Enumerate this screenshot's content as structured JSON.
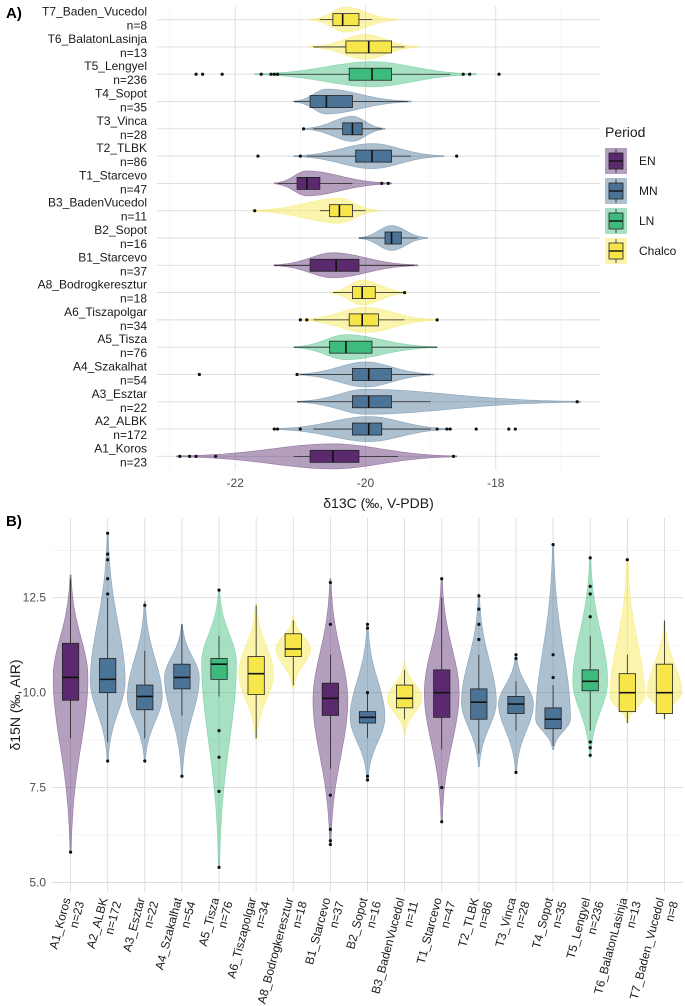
{
  "figure": {
    "panel_a_tag": "A)",
    "panel_b_tag": "B)",
    "legend": {
      "title": "Period",
      "items": [
        {
          "label": "EN",
          "color": "#5b2a6e"
        },
        {
          "label": "MN",
          "color": "#4a7396"
        },
        {
          "label": "LN",
          "color": "#3dbb7d"
        },
        {
          "label": "Chalco",
          "color": "#f7e64a"
        }
      ]
    }
  },
  "chart_data": [
    {
      "type": "violin-box",
      "orientation": "horizontal",
      "title": "",
      "xlabel": "δ13C (‰, V-PDB)",
      "ylabel": "",
      "xlim": [
        -23.2,
        -16.4
      ],
      "xticks": [
        -22,
        -20,
        -18
      ],
      "xtick_labels": [
        "-22",
        "-20",
        "-18"
      ],
      "grid": true,
      "legend_position": "right",
      "groups": [
        {
          "name": "T7_Baden_Vucedol",
          "n": "n=8",
          "period": "Chalco",
          "min": -20.7,
          "q1": -20.5,
          "median": -20.35,
          "q3": -20.1,
          "max": -19.9,
          "vmin": -20.85,
          "vmax": -19.5,
          "peak": -20.3,
          "outliers": []
        },
        {
          "name": "T6_BalatonLasinja",
          "n": "n=13",
          "period": "Chalco",
          "min": -20.8,
          "q1": -20.3,
          "median": -19.95,
          "q3": -19.6,
          "max": -19.4,
          "vmin": -20.85,
          "vmax": -19.2,
          "peak": -20.0,
          "outliers": []
        },
        {
          "name": "T5_Lengyel",
          "n": "n=236",
          "period": "LN",
          "min": -21.4,
          "q1": -20.25,
          "median": -19.9,
          "q3": -19.6,
          "max": -18.7,
          "vmin": -21.7,
          "vmax": -18.3,
          "peak": -19.9,
          "outliers": [
            -22.6,
            -22.5,
            -22.2,
            -21.6,
            -21.45,
            -21.4,
            -21.35,
            -18.5,
            -18.4,
            -17.95
          ]
        },
        {
          "name": "T4_Sopot",
          "n": "n=35",
          "period": "MN",
          "min": -21.1,
          "q1": -20.85,
          "median": -20.6,
          "q3": -20.2,
          "max": -19.35,
          "vmin": -21.1,
          "vmax": -19.3,
          "peak": -20.6,
          "outliers": []
        },
        {
          "name": "T3_Vinca",
          "n": "n=28",
          "period": "MN",
          "min": -20.8,
          "q1": -20.35,
          "median": -20.2,
          "q3": -20.05,
          "max": -19.75,
          "vmin": -20.95,
          "vmax": -19.7,
          "peak": -20.2,
          "outliers": [
            -20.95
          ]
        },
        {
          "name": "T2_TLBK",
          "n": "n=86",
          "period": "MN",
          "min": -20.9,
          "q1": -20.15,
          "median": -19.9,
          "q3": -19.6,
          "max": -19.3,
          "vmin": -21.1,
          "vmax": -18.8,
          "peak": -19.9,
          "outliers": [
            -21.65,
            -21.0,
            -18.6
          ]
        },
        {
          "name": "T1_Starcevo",
          "n": "n=47",
          "period": "EN",
          "min": -21.35,
          "q1": -21.05,
          "median": -20.9,
          "q3": -20.7,
          "max": -20.2,
          "vmin": -21.4,
          "vmax": -19.6,
          "peak": -20.9,
          "outliers": [
            -19.75,
            -19.65
          ]
        },
        {
          "name": "B3_BadenVucedol",
          "n": "n=11",
          "period": "Chalco",
          "min": -20.7,
          "q1": -20.55,
          "median": -20.4,
          "q3": -20.2,
          "max": -20.0,
          "vmin": -21.75,
          "vmax": -19.8,
          "peak": -20.4,
          "outliers": [
            -21.7
          ]
        },
        {
          "name": "B2_Sopot",
          "n": "n=16",
          "period": "MN",
          "min": -20.1,
          "q1": -19.7,
          "median": -19.6,
          "q3": -19.45,
          "max": -19.2,
          "vmin": -20.1,
          "vmax": -19.05,
          "peak": -19.6,
          "outliers": []
        },
        {
          "name": "B1_Starcevo",
          "n": "n=37",
          "period": "EN",
          "min": -21.4,
          "q1": -20.85,
          "median": -20.45,
          "q3": -20.1,
          "max": -19.25,
          "vmin": -21.4,
          "vmax": -19.2,
          "peak": -20.5,
          "outliers": []
        },
        {
          "name": "A8_Bodrogkeresztur",
          "n": "n=18",
          "period": "Chalco",
          "min": -20.5,
          "q1": -20.2,
          "median": -20.05,
          "q3": -19.85,
          "max": -19.4,
          "vmin": -20.55,
          "vmax": -19.35,
          "peak": -20.05,
          "outliers": [
            -19.4
          ]
        },
        {
          "name": "A6_Tiszapolgar",
          "n": "n=34",
          "period": "Chalco",
          "min": -20.8,
          "q1": -20.25,
          "median": -20.05,
          "q3": -19.8,
          "max": -19.4,
          "vmin": -21.0,
          "vmax": -18.9,
          "peak": -20.0,
          "outliers": [
            -21.0,
            -20.9,
            -18.9
          ]
        },
        {
          "name": "A5_Tisza",
          "n": "n=76",
          "period": "LN",
          "min": -21.1,
          "q1": -20.55,
          "median": -20.3,
          "q3": -19.9,
          "max": -18.9,
          "vmin": -21.1,
          "vmax": -18.9,
          "peak": -20.3,
          "outliers": []
        },
        {
          "name": "A4_Szakalhat",
          "n": "n=54",
          "period": "MN",
          "min": -21.0,
          "q1": -20.2,
          "median": -19.95,
          "q3": -19.6,
          "max": -19.0,
          "vmin": -21.05,
          "vmax": -18.95,
          "peak": -20.0,
          "outliers": [
            -22.55,
            -21.05
          ]
        },
        {
          "name": "A3_Esztar",
          "n": "n=22",
          "period": "MN",
          "min": -21.05,
          "q1": -20.2,
          "median": -19.95,
          "q3": -19.6,
          "max": -19.0,
          "vmin": -21.05,
          "vmax": -16.7,
          "peak": -20.0,
          "outliers": [
            -16.75
          ]
        },
        {
          "name": "A2_ALBK",
          "n": "n=172",
          "period": "MN",
          "min": -20.8,
          "q1": -20.2,
          "median": -19.95,
          "q3": -19.75,
          "max": -19.0,
          "vmin": -21.4,
          "vmax": -18.7,
          "peak": -19.95,
          "outliers": [
            -21.4,
            -21.35,
            -21.0,
            -18.9,
            -18.75,
            -18.7,
            -18.3,
            -17.8,
            -17.7
          ]
        },
        {
          "name": "A1_Koros",
          "n": "n=23",
          "period": "EN",
          "min": -21.1,
          "q1": -20.85,
          "median": -20.5,
          "q3": -20.1,
          "max": -19.5,
          "vmin": -22.9,
          "vmax": -18.6,
          "peak": -20.5,
          "outliers": [
            -22.85,
            -22.7,
            -22.6,
            -22.3,
            -18.65
          ]
        }
      ]
    },
    {
      "type": "violin-box",
      "orientation": "vertical",
      "title": "",
      "xlabel": "",
      "ylabel": "δ15N (‰, AIR)",
      "ylim": [
        4.75,
        14.6
      ],
      "yticks": [
        5.0,
        7.5,
        10.0,
        12.5
      ],
      "ytick_labels": [
        "5.0",
        "7.5",
        "10.0",
        "12.5"
      ],
      "grid": true,
      "groups": [
        {
          "name": "A1_Koros",
          "n": "n=23",
          "period": "EN",
          "min": 8.8,
          "q1": 9.8,
          "median": 10.4,
          "q3": 11.3,
          "max": 13.0,
          "vmin": 5.8,
          "vmax": 13.1,
          "peak": 10.4,
          "outliers": [
            5.8
          ]
        },
        {
          "name": "A2_ALBK",
          "n": "n=172",
          "period": "MN",
          "min": 8.7,
          "q1": 10.0,
          "median": 10.35,
          "q3": 10.9,
          "max": 12.5,
          "vmin": 8.2,
          "vmax": 14.2,
          "peak": 10.3,
          "outliers": [
            8.2,
            12.6,
            13.0,
            13.5,
            13.65,
            14.2
          ]
        },
        {
          "name": "A3_Esztar",
          "n": "n=22",
          "period": "MN",
          "min": 8.8,
          "q1": 9.55,
          "median": 9.9,
          "q3": 10.2,
          "max": 11.1,
          "vmin": 8.2,
          "vmax": 12.4,
          "peak": 9.9,
          "outliers": [
            8.2,
            12.3
          ]
        },
        {
          "name": "A4_Szakalhat",
          "n": "n=54",
          "period": "MN",
          "min": 9.4,
          "q1": 10.1,
          "median": 10.4,
          "q3": 10.75,
          "max": 11.8,
          "vmin": 7.8,
          "vmax": 11.8,
          "peak": 10.4,
          "outliers": [
            7.8
          ]
        },
        {
          "name": "A5_Tisza",
          "n": "n=76",
          "period": "LN",
          "min": 9.9,
          "q1": 10.35,
          "median": 10.75,
          "q3": 10.9,
          "max": 11.5,
          "vmin": 5.4,
          "vmax": 12.7,
          "peak": 10.8,
          "outliers": [
            5.4,
            7.4,
            8.3,
            9.0,
            12.7
          ]
        },
        {
          "name": "A6_Tiszapolgar",
          "n": "n=34",
          "period": "Chalco",
          "min": 8.8,
          "q1": 9.95,
          "median": 10.5,
          "q3": 10.95,
          "max": 12.3,
          "vmin": 8.75,
          "vmax": 12.35,
          "peak": 10.5,
          "outliers": []
        },
        {
          "name": "A8_Bodrogkeresztur",
          "n": "n=18",
          "period": "Chalco",
          "min": 10.2,
          "q1": 10.95,
          "median": 11.15,
          "q3": 11.55,
          "max": 11.9,
          "vmin": 10.1,
          "vmax": 12.0,
          "peak": 11.15,
          "outliers": []
        },
        {
          "name": "B1_Starcevo",
          "n": "n=37",
          "period": "EN",
          "min": 8.0,
          "q1": 9.4,
          "median": 9.85,
          "q3": 10.25,
          "max": 11.0,
          "vmin": 6.0,
          "vmax": 13.0,
          "peak": 9.8,
          "outliers": [
            6.0,
            6.1,
            6.4,
            7.3,
            11.8,
            12.9
          ]
        },
        {
          "name": "B2_Sopot",
          "n": "n=16",
          "period": "MN",
          "min": 8.8,
          "q1": 9.2,
          "median": 9.35,
          "q3": 9.5,
          "max": 10.0,
          "vmin": 7.7,
          "vmax": 11.8,
          "peak": 9.35,
          "outliers": [
            7.7,
            7.8,
            10.0,
            11.7,
            11.8
          ]
        },
        {
          "name": "B3_BadenVucedol",
          "n": "n=11",
          "period": "Chalco",
          "min": 9.3,
          "q1": 9.6,
          "median": 9.85,
          "q3": 10.2,
          "max": 10.6,
          "vmin": 8.9,
          "vmax": 10.8,
          "peak": 9.85,
          "outliers": []
        },
        {
          "name": "T1_Starcevo",
          "n": "n=47",
          "period": "EN",
          "min": 8.5,
          "q1": 9.35,
          "median": 10.0,
          "q3": 10.6,
          "max": 12.5,
          "vmin": 6.6,
          "vmax": 13.0,
          "peak": 10.0,
          "outliers": [
            6.6,
            7.5,
            13.0
          ]
        },
        {
          "name": "T2_TLBK",
          "n": "n=86",
          "period": "MN",
          "min": 8.4,
          "q1": 9.3,
          "median": 9.75,
          "q3": 10.1,
          "max": 11.0,
          "vmin": 8.05,
          "vmax": 12.6,
          "peak": 9.75,
          "outliers": [
            11.4,
            11.8,
            12.2,
            12.55
          ]
        },
        {
          "name": "T3_Vinca",
          "n": "n=28",
          "period": "MN",
          "min": 9.0,
          "q1": 9.45,
          "median": 9.7,
          "q3": 9.9,
          "max": 10.3,
          "vmin": 7.9,
          "vmax": 11.0,
          "peak": 9.7,
          "outliers": [
            7.9,
            10.9,
            11.0
          ]
        },
        {
          "name": "T4_Sopot",
          "n": "n=35",
          "period": "MN",
          "min": 8.6,
          "q1": 9.05,
          "median": 9.3,
          "q3": 9.6,
          "max": 10.2,
          "vmin": 8.5,
          "vmax": 13.9,
          "peak": 9.3,
          "outliers": [
            10.4,
            11.0,
            13.9
          ]
        },
        {
          "name": "T5_Lengyel",
          "n": "n=236",
          "period": "LN",
          "min": 9.0,
          "q1": 10.05,
          "median": 10.3,
          "q3": 10.6,
          "max": 11.5,
          "vmin": 8.3,
          "vmax": 13.6,
          "peak": 10.3,
          "outliers": [
            8.35,
            8.55,
            8.7,
            12.0,
            12.6,
            12.8,
            13.55
          ]
        },
        {
          "name": "T6_BalatonLasinja",
          "n": "n=13",
          "period": "Chalco",
          "min": 9.2,
          "q1": 9.5,
          "median": 10.0,
          "q3": 10.5,
          "max": 11.0,
          "vmin": 9.2,
          "vmax": 13.55,
          "peak": 9.9,
          "outliers": [
            13.5
          ]
        },
        {
          "name": "T7_Baden_Vucedol",
          "n": "n=8",
          "period": "Chalco",
          "min": 9.3,
          "q1": 9.45,
          "median": 10.0,
          "q3": 10.75,
          "max": 11.9,
          "vmin": 9.3,
          "vmax": 11.9,
          "peak": 10.0,
          "outliers": []
        }
      ]
    }
  ]
}
